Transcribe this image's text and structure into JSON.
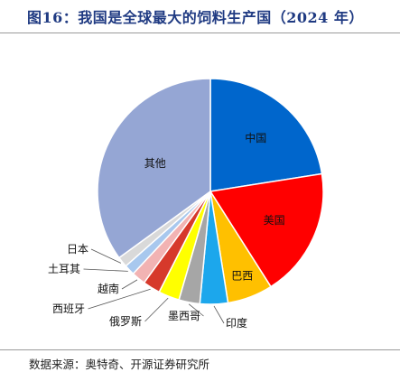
{
  "header": {
    "title": "图16：我国是全球最大的饲料生产国（2024 年）"
  },
  "footer": {
    "source": "数据来源：奥特奇、开源证券研究所"
  },
  "chart_data": {
    "type": "pie",
    "title": "图16：我国是全球最大的饲料生产国（2024 年）",
    "start_angle_deg": 0,
    "direction": "clockwise",
    "slices": [
      {
        "label": "中国",
        "value": 22.5,
        "color": "#0066cc",
        "label_mode": "inside"
      },
      {
        "label": "美国",
        "value": 18.5,
        "color": "#ff0000",
        "label_mode": "inside"
      },
      {
        "label": "巴西",
        "value": 6.5,
        "color": "#ffc000",
        "label_mode": "inside"
      },
      {
        "label": "印度",
        "value": 4.0,
        "color": "#1ca7ec",
        "label_mode": "outside"
      },
      {
        "label": "墨西哥",
        "value": 3.0,
        "color": "#a6a6a6",
        "label_mode": "outside"
      },
      {
        "label": "俄罗斯",
        "value": 3.0,
        "color": "#ffff00",
        "label_mode": "outside"
      },
      {
        "label": "西班牙",
        "value": 2.5,
        "color": "#d6392b",
        "label_mode": "outside"
      },
      {
        "label": "越南",
        "value": 2.0,
        "color": "#f2b3b3",
        "label_mode": "outside"
      },
      {
        "label": "土耳其",
        "value": 1.5,
        "color": "#a8c8ee",
        "label_mode": "outside"
      },
      {
        "label": "日本",
        "value": 1.5,
        "color": "#d9d9d9",
        "label_mode": "outside"
      },
      {
        "label": "其他",
        "value": 35.0,
        "color": "#95a6d4",
        "label_mode": "inside"
      }
    ]
  }
}
